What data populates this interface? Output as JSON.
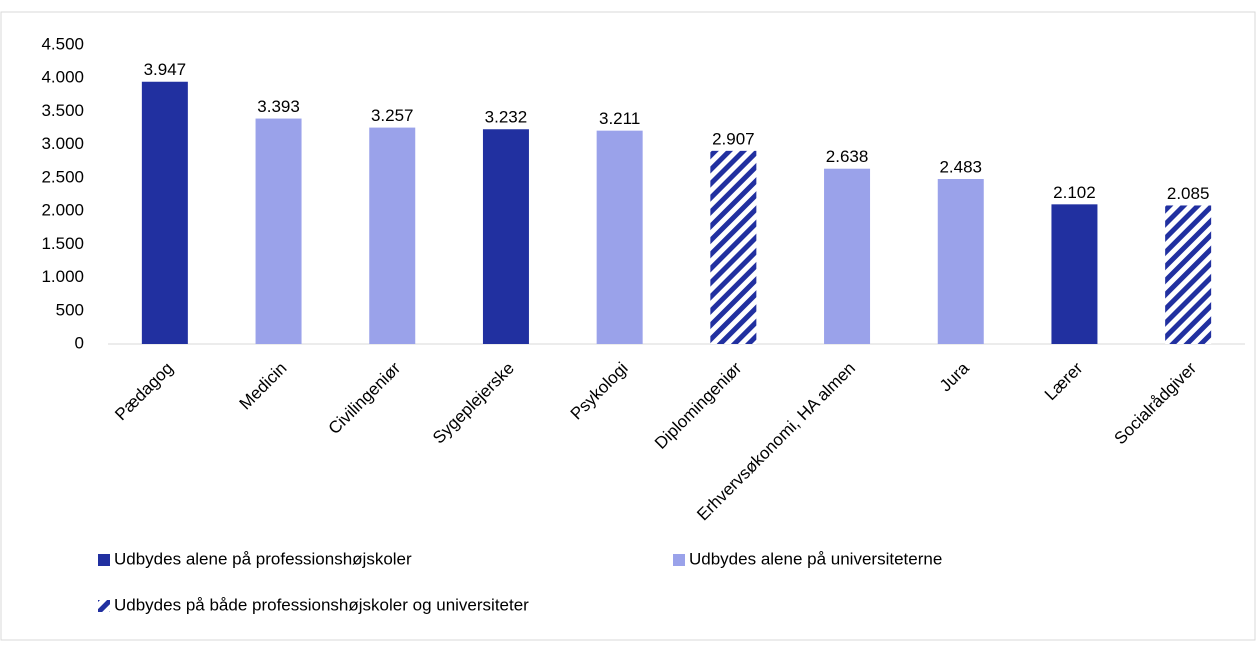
{
  "chart_data": {
    "type": "bar",
    "categories": [
      "Pædagog",
      "Medicin",
      "Civilingeniør",
      "Sygeplejerske",
      "Psykologi",
      "Diplomingeniør",
      "Erhvervsøkonomi, HA almen",
      "Jura",
      "Lærer",
      "Socialrådgiver"
    ],
    "series": [
      {
        "name": "Udbydes alene på professionshøjskoler",
        "color": "#2130a0",
        "pattern": "solid",
        "values": [
          3947,
          null,
          null,
          3232,
          null,
          null,
          null,
          null,
          2102,
          null
        ],
        "value_labels": [
          "3.947",
          null,
          null,
          "3.232",
          null,
          null,
          null,
          null,
          "2.102",
          null
        ]
      },
      {
        "name": "Udbydes alene på universiteterne",
        "color": "#9aa2ea",
        "pattern": "solid",
        "values": [
          null,
          3393,
          3257,
          null,
          3211,
          null,
          2638,
          2483,
          null,
          null
        ],
        "value_labels": [
          null,
          "3.393",
          "3.257",
          null,
          "3.211",
          null,
          "2.638",
          "2.483",
          null,
          null
        ]
      },
      {
        "name": "Udbydes på både professionshøjskoler og universiteter",
        "color": "#2130a0",
        "pattern": "hatch",
        "values": [
          null,
          null,
          null,
          null,
          null,
          2907,
          null,
          null,
          null,
          2085
        ],
        "value_labels": [
          null,
          null,
          null,
          null,
          null,
          "2.907",
          null,
          null,
          null,
          "2.085"
        ]
      }
    ],
    "ylim": [
      0,
      4500
    ],
    "yticks": [
      0,
      500,
      {
        "value": 1000,
        "label": "1.000"
      },
      {
        "value": 1500,
        "label": "1.500"
      },
      {
        "value": 2000,
        "label": "2.000"
      },
      {
        "value": 2500,
        "label": "2.500"
      },
      {
        "value": 3000,
        "label": "3.000"
      },
      {
        "value": 3500,
        "label": "3.500"
      },
      {
        "value": 4000,
        "label": "4.000"
      },
      {
        "value": 4500,
        "label": "4.500"
      }
    ],
    "grid": false
  }
}
